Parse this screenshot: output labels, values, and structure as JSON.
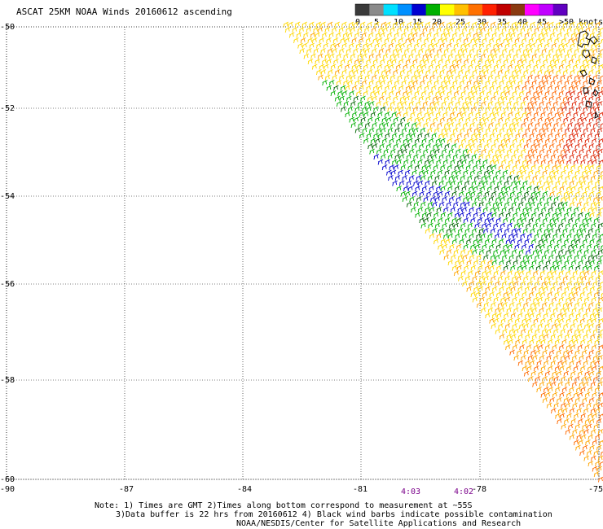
{
  "title": "ASCAT 25KM NOAA Winds 20160612 ascending",
  "color_scale": {
    "labels": [
      "0",
      "5",
      "10",
      "15",
      "20",
      "25",
      "30",
      "35",
      "40",
      "45",
      ">50 knots"
    ],
    "colors": [
      "#3a3a3a",
      "#8a8a8a",
      "#00e0ff",
      "#0090ff",
      "#0000d0",
      "#00b000",
      "#ffff00",
      "#ffc000",
      "#ff7000",
      "#ff2000",
      "#c00000",
      "#8a3a10",
      "#ff00ff",
      "#c000ff",
      "#6000c0"
    ]
  },
  "axes": {
    "lon_labels": [
      "-90",
      "-87",
      "-84",
      "-81",
      "-78",
      "-75"
    ],
    "lat_labels": [
      "-50",
      "-52",
      "-54",
      "-56",
      "-58",
      "-60"
    ]
  },
  "times": [
    {
      "label": "4:03"
    },
    {
      "label": "4:02"
    }
  ],
  "notes": {
    "line1": "Note: 1) Times are GMT 2)Times along bottom correspond to measurement at ~55S",
    "line2": "3)Data buffer is 22 hrs from 20160612 4) Black wind barbs indicate possible contamination",
    "line3": "NOAA/NESDIS/Center for Satellite Applications and Research"
  }
}
